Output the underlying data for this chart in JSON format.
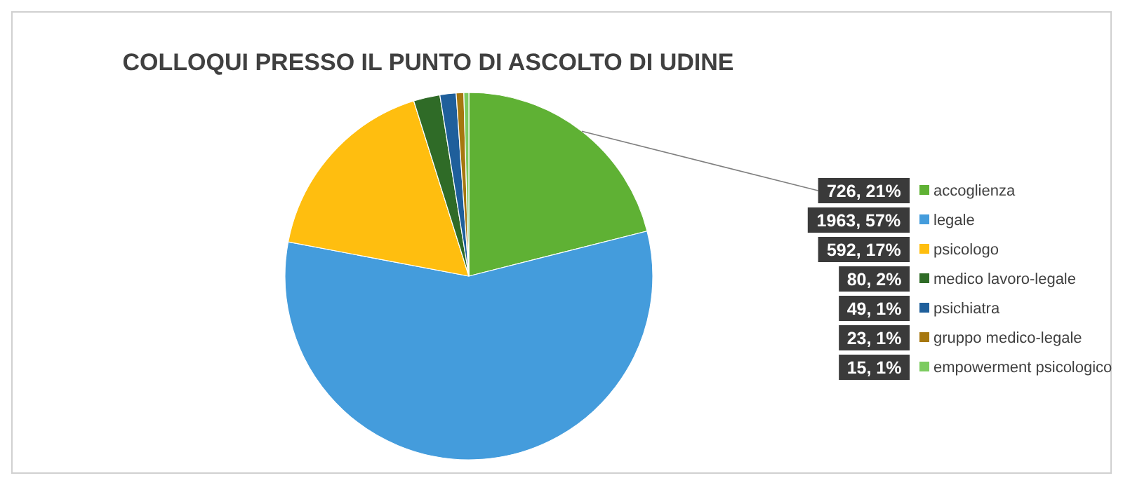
{
  "chart_data": {
    "type": "pie",
    "title": "COLLOQUI PRESSO IL PUNTO DI ASCOLTO DI UDINE",
    "categories": [
      "accoglienza",
      "legale",
      "psicologo",
      "medico lavoro-legale",
      "psichiatra",
      "gruppo  medico-legale",
      "empowerment psicologico"
    ],
    "values": [
      726,
      1963,
      592,
      80,
      49,
      23,
      15
    ],
    "value_labels": [
      "726, 21%",
      "1963, 57%",
      "592, 17%",
      "80, 2%",
      "49, 1%",
      "23, 1%",
      "15, 1%"
    ],
    "colors": [
      "#5fb134",
      "#449cdc",
      "#ffbe0f",
      "#2f6b27",
      "#1f5f9b",
      "#a6770f",
      "#7ccb5f"
    ],
    "legend": "right"
  }
}
